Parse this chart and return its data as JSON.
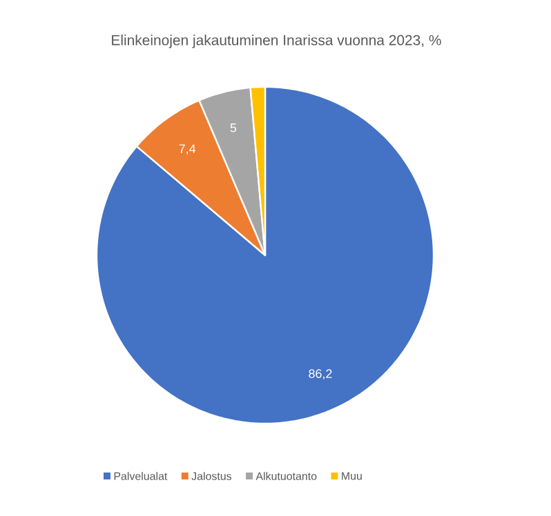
{
  "chart_data": {
    "type": "pie",
    "title": "Elinkeinojen jakautuminen Inarissa vuonna 2023, %",
    "categories": [
      "Palvelualat",
      "Jalostus",
      "Alkutuotanto",
      "Muu"
    ],
    "values": [
      86.2,
      7.4,
      5,
      1.4
    ],
    "colors": [
      "#4472c4",
      "#ed7d31",
      "#a5a5a5",
      "#ffc000"
    ],
    "value_labels": [
      "86,2",
      "7,4",
      "5",
      null
    ],
    "legend": "bottom"
  }
}
